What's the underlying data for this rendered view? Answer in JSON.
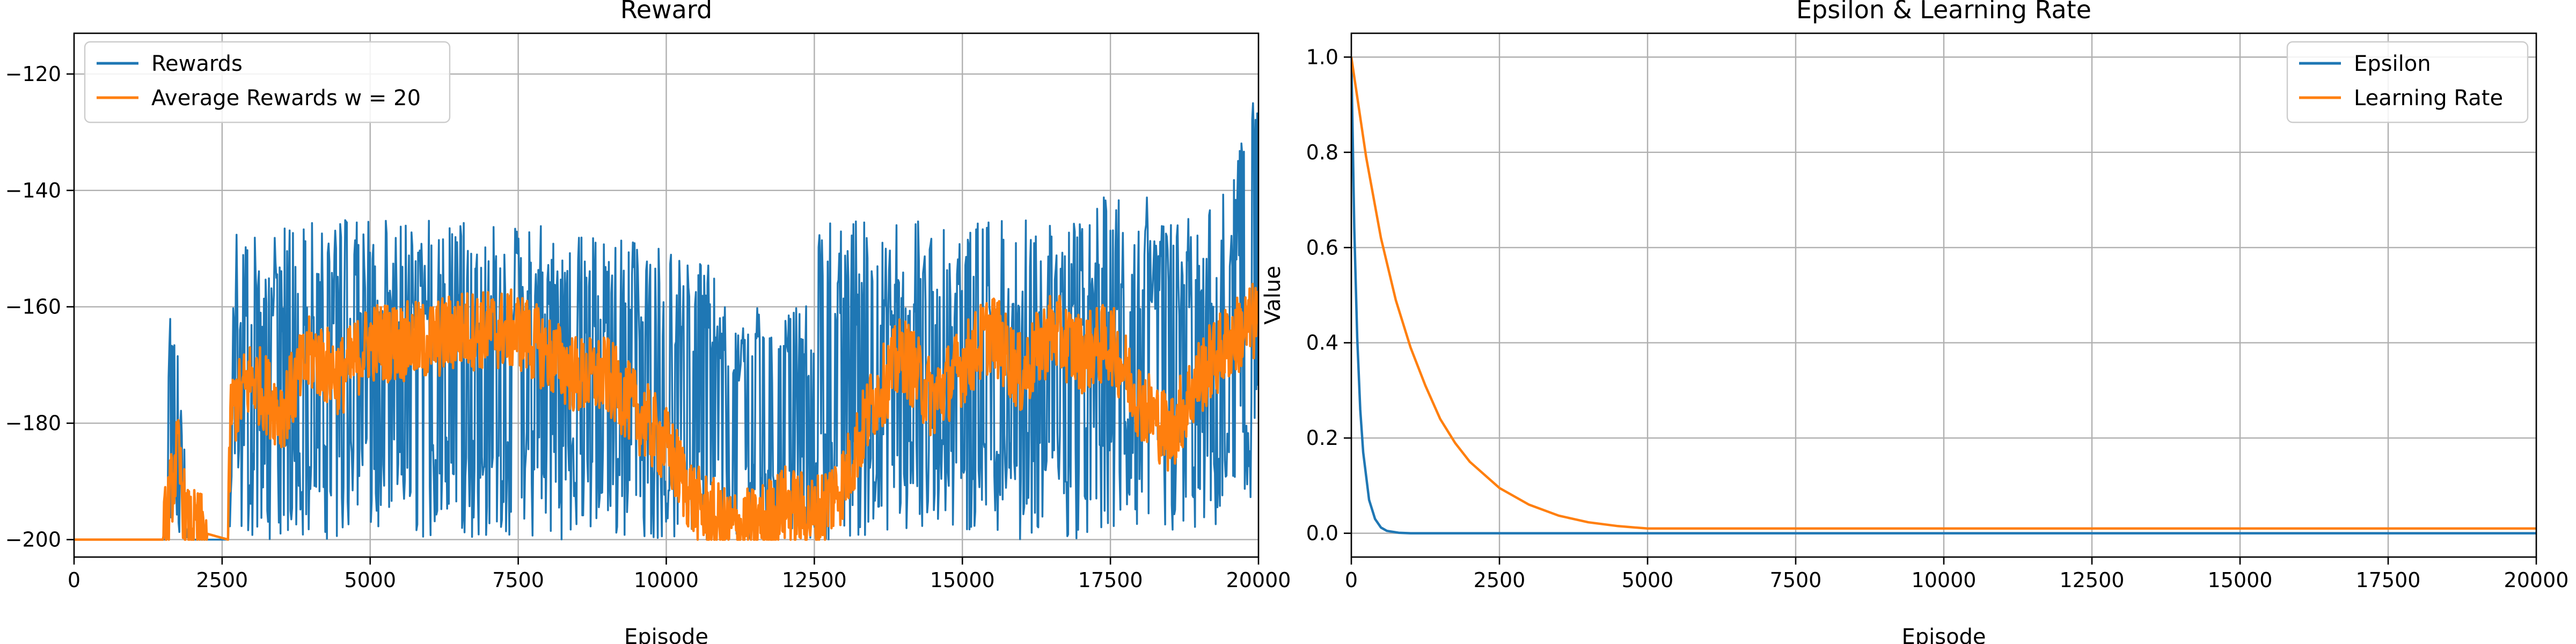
{
  "colors": {
    "series_blue": "#1f77b4",
    "series_orange": "#ff7f0e",
    "grid": "#b0b0b0"
  },
  "chart_data": [
    {
      "type": "line",
      "title": "Reward",
      "xlabel": "Episode",
      "ylabel": "",
      "xlim": [
        0,
        20000
      ],
      "ylim": [
        -203,
        -113
      ],
      "xticks": [
        0,
        2500,
        5000,
        7500,
        10000,
        12500,
        15000,
        17500,
        20000
      ],
      "yticks": [
        -200,
        -180,
        -160,
        -140,
        -120
      ],
      "grid": true,
      "legend": "top-left",
      "series": [
        {
          "name": "Rewards",
          "color": "#1f77b4",
          "style": "noisy-band",
          "x": [
            0,
            1550,
            1600,
            1700,
            1850,
            1950,
            2600,
            2700,
            3000,
            4000,
            5000,
            6000,
            7000,
            8000,
            9000,
            10000,
            10700,
            11000,
            11500,
            12000,
            12400,
            12600,
            13000,
            13500,
            14000,
            15000,
            16000,
            17000,
            17500,
            18000,
            18500,
            19000,
            19500,
            20000
          ],
          "upper": [
            -200,
            -200,
            -158,
            -156,
            -180,
            -200,
            -200,
            -146,
            -146,
            -145,
            -145,
            -145,
            -146,
            -145,
            -148,
            -150,
            -152,
            -160,
            -160,
            -162,
            -158,
            -146,
            -145,
            -145,
            -145,
            -145,
            -145,
            -145,
            -140,
            -140,
            -145,
            -142,
            -140,
            -118
          ],
          "lower": [
            -200,
            -200,
            -200,
            -200,
            -200,
            -200,
            -200,
            -200,
            -200,
            -200,
            -200,
            -200,
            -200,
            -200,
            -200,
            -200,
            -200,
            -200,
            -200,
            -200,
            -200,
            -200,
            -200,
            -200,
            -200,
            -200,
            -200,
            -200,
            -200,
            -200,
            -200,
            -200,
            -200,
            -200
          ]
        },
        {
          "name": "Average Rewards $w = 20$",
          "legend_label": "Average Rewards w = 20",
          "color": "#ff7f0e",
          "x": [
            0,
            1500,
            1600,
            1750,
            1900,
            2600,
            2650,
            3000,
            3500,
            4000,
            4500,
            5000,
            5500,
            6000,
            6500,
            7000,
            7500,
            8000,
            8500,
            9000,
            9500,
            10000,
            10500,
            11000,
            11500,
            12000,
            12500,
            13000,
            13500,
            14000,
            14500,
            15000,
            15500,
            16000,
            16500,
            17000,
            17500,
            18000,
            18500,
            19000,
            19500,
            20000
          ],
          "y": [
            -200,
            -200,
            -194,
            -185,
            -198,
            -200,
            -178,
            -172,
            -178,
            -168,
            -172,
            -166,
            -166,
            -166,
            -164,
            -164,
            -164,
            -168,
            -172,
            -172,
            -178,
            -184,
            -194,
            -198,
            -198,
            -194,
            -196,
            -190,
            -176,
            -168,
            -176,
            -170,
            -164,
            -172,
            -164,
            -168,
            -166,
            -176,
            -182,
            -172,
            -166,
            -162
          ]
        }
      ]
    },
    {
      "type": "line",
      "title": "Epsilon & Learning Rate",
      "xlabel": "Episode",
      "ylabel": "Value",
      "xlim": [
        0,
        20000
      ],
      "ylim": [
        -0.05,
        1.05
      ],
      "xticks": [
        0,
        2500,
        5000,
        7500,
        10000,
        12500,
        15000,
        17500,
        20000
      ],
      "yticks": [
        0.0,
        0.2,
        0.4,
        0.6,
        0.8,
        1.0
      ],
      "grid": true,
      "legend": "top-right",
      "series": [
        {
          "name": "Epsilon",
          "color": "#1f77b4",
          "x": [
            0,
            50,
            100,
            150,
            200,
            300,
            400,
            500,
            600,
            800,
            1000,
            2000,
            5000,
            10000,
            15000,
            20000
          ],
          "y": [
            1.0,
            0.64,
            0.41,
            0.26,
            0.17,
            0.07,
            0.03,
            0.012,
            0.005,
            0.001,
            0.0,
            0.0,
            0.0,
            0.0,
            0.0,
            0.0
          ]
        },
        {
          "name": "Learning Rate",
          "color": "#ff7f0e",
          "x": [
            0,
            250,
            500,
            750,
            1000,
            1250,
            1500,
            1750,
            2000,
            2500,
            3000,
            3500,
            4000,
            4500,
            5000,
            7500,
            10000,
            15000,
            20000
          ],
          "y": [
            1.0,
            0.79,
            0.62,
            0.49,
            0.39,
            0.31,
            0.24,
            0.19,
            0.15,
            0.095,
            0.06,
            0.037,
            0.023,
            0.015,
            0.01,
            0.01,
            0.01,
            0.01,
            0.01
          ]
        }
      ]
    }
  ]
}
